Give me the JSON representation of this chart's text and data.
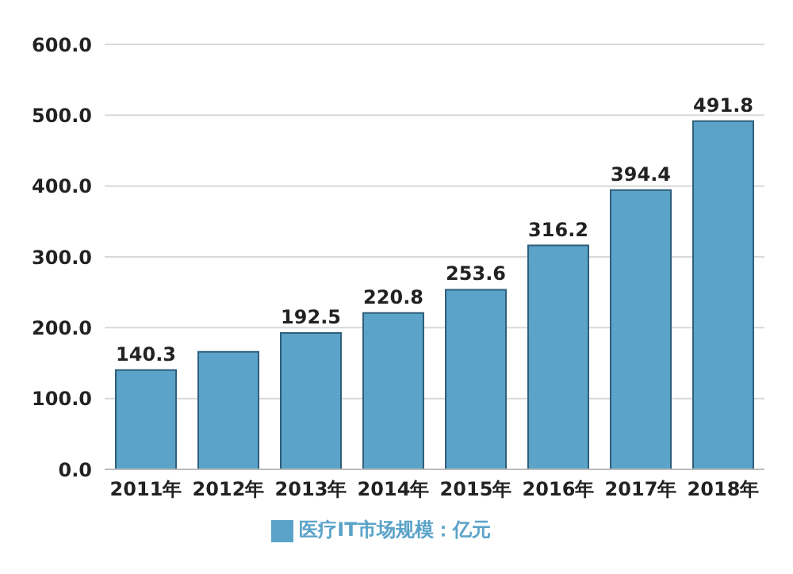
{
  "chart_data": {
    "type": "bar",
    "categories": [
      "2011年",
      "2012年",
      "2013年",
      "2014年",
      "2015年",
      "2016年",
      "2017年",
      "2018年"
    ],
    "series": [
      {
        "name": "医疗IT市场规模：亿元",
        "color": "#5ba3c8",
        "values": [
          140.3,
          166,
          192.5,
          220.8,
          253.6,
          316.2,
          394.4,
          491.8
        ],
        "value_labels": [
          "140.3",
          null,
          "192.5",
          "220.8",
          "253.6",
          "316.2",
          "394.4",
          "491.8"
        ]
      }
    ],
    "ylim": [
      0,
      600
    ],
    "yticks": [
      {
        "value": 0,
        "label": "0.0"
      },
      {
        "value": 100,
        "label": "100.0"
      },
      {
        "value": 200,
        "label": "200.0"
      },
      {
        "value": 300,
        "label": "300.0"
      },
      {
        "value": 400,
        "label": "400.0"
      },
      {
        "value": 500,
        "label": "500.0"
      },
      {
        "value": 600,
        "label": "600.0"
      }
    ],
    "grid": "y",
    "legend": "bottom"
  }
}
